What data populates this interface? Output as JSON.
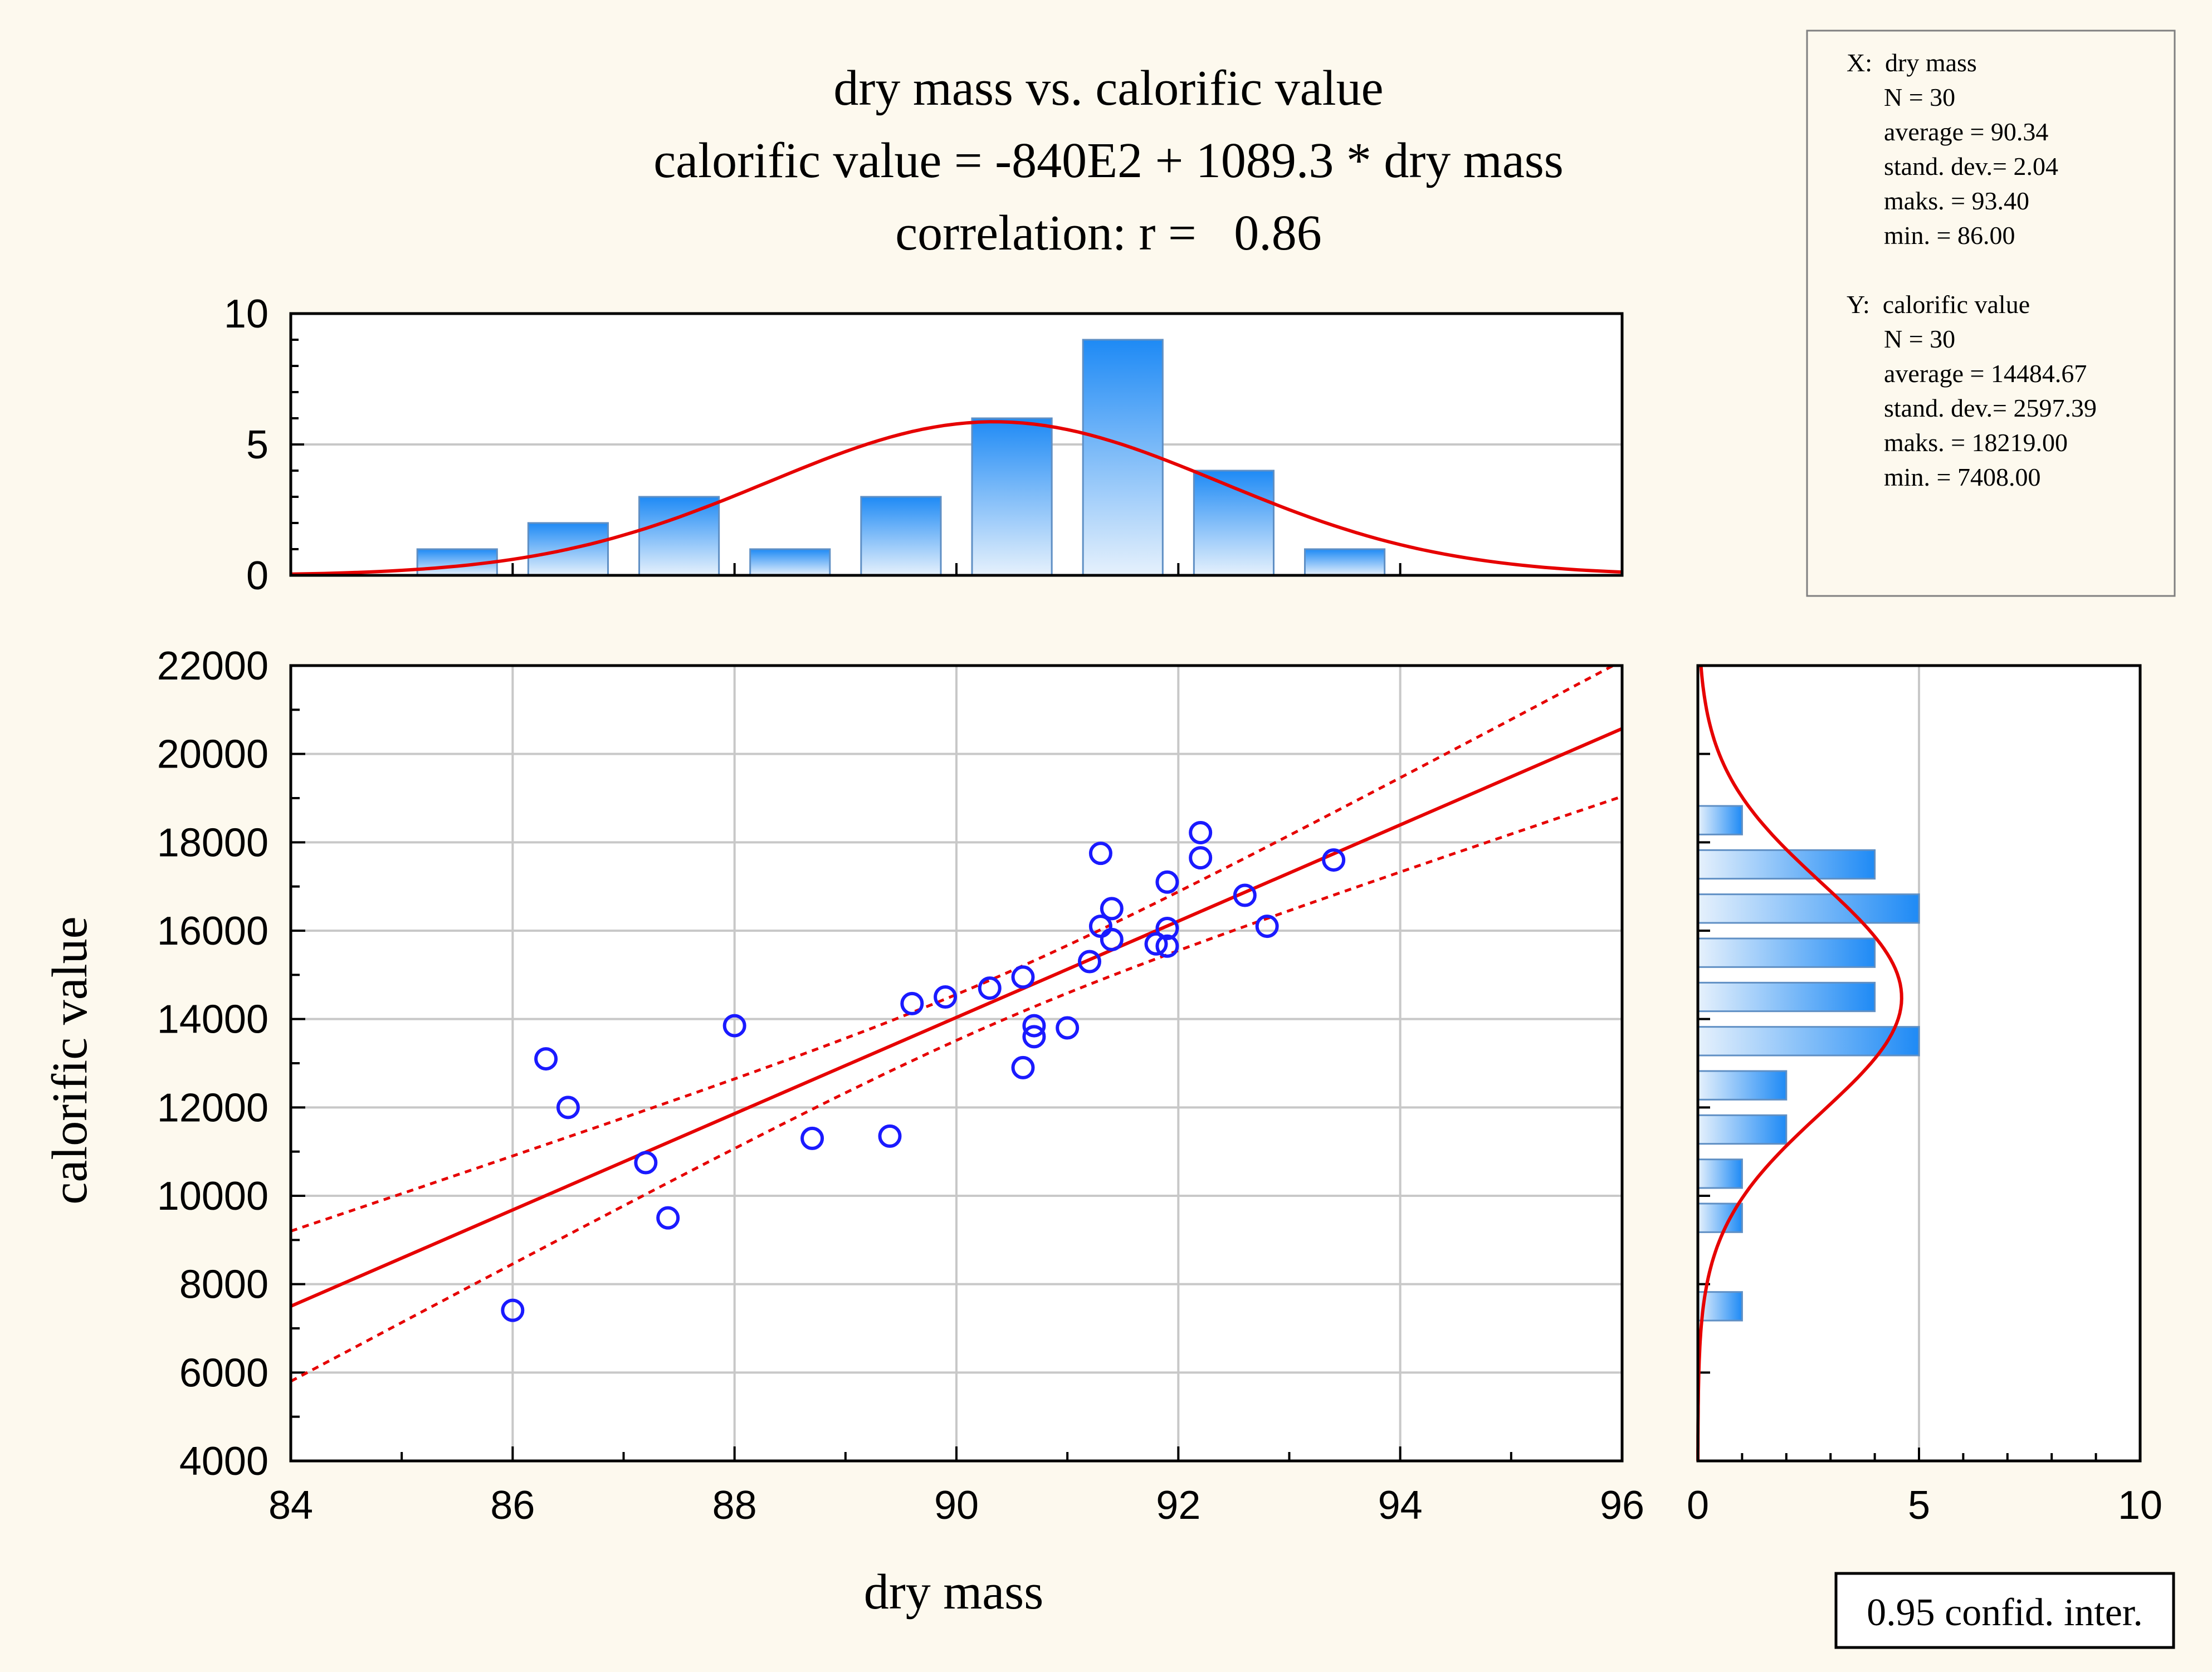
{
  "colors": {
    "background": "#fdf9ee",
    "plot_background": "#ffffff",
    "grid": "#c8c8c8",
    "points": "#1a1aff",
    "fit_line": "#e60000",
    "bar_top": "#1e8af5",
    "bar_bottom": "#e6f1fc",
    "bar_border": "#5f8fc4"
  },
  "title": {
    "line1": "dry mass vs. calorific value",
    "line2": "calorific value = -840E2 + 1089.3 * dry mass",
    "line3": "correlation: r =   0.86"
  },
  "stats_box": {
    "x_header": "X:  dry mass",
    "x_lines": [
      "N = 30",
      "average = 90.34",
      "stand. dev.= 2.04",
      "maks. = 93.40",
      "min. = 86.00"
    ],
    "y_header": "Y:  calorific value",
    "y_lines": [
      "N = 30",
      "average = 14484.67",
      " stand. dev.=  2597.39",
      "maks. = 18219.00",
      "min. = 7408.00"
    ]
  },
  "conf_label": "0.95 confid. inter.",
  "chart_data": [
    {
      "type": "scatter",
      "xlabel": "dry mass",
      "ylabel": "calorific value",
      "xlim": [
        84,
        96
      ],
      "ylim": [
        4000,
        22000
      ],
      "xticks": [
        84,
        86,
        88,
        90,
        92,
        94,
        96
      ],
      "yticks": [
        4000,
        6000,
        8000,
        10000,
        12000,
        14000,
        16000,
        18000,
        20000,
        22000
      ],
      "grid": true,
      "regression": {
        "intercept": -84000,
        "slope": 1089.3,
        "r": 0.86
      },
      "confidence": 0.95,
      "x_mean": 90.34,
      "n": 30,
      "points": [
        [
          86.0,
          7408
        ],
        [
          86.3,
          13100
        ],
        [
          86.5,
          12000
        ],
        [
          87.2,
          10750
        ],
        [
          87.4,
          9500
        ],
        [
          88.0,
          13850
        ],
        [
          88.7,
          11300
        ],
        [
          89.4,
          11350
        ],
        [
          89.6,
          14350
        ],
        [
          89.9,
          14500
        ],
        [
          90.3,
          14700
        ],
        [
          90.6,
          14950
        ],
        [
          90.6,
          12900
        ],
        [
          90.7,
          13850
        ],
        [
          90.7,
          13600
        ],
        [
          91.0,
          13800
        ],
        [
          91.2,
          15300
        ],
        [
          91.3,
          17750
        ],
        [
          91.3,
          16100
        ],
        [
          91.4,
          16500
        ],
        [
          91.4,
          15800
        ],
        [
          91.8,
          15700
        ],
        [
          91.9,
          17100
        ],
        [
          91.9,
          16050
        ],
        [
          91.9,
          15650
        ],
        [
          92.2,
          18219
        ],
        [
          92.2,
          17650
        ],
        [
          92.6,
          16800
        ],
        [
          92.8,
          16100
        ],
        [
          93.4,
          17600
        ]
      ]
    },
    {
      "type": "bar",
      "name": "histogram dry mass",
      "xlim": [
        84,
        96
      ],
      "ylim": [
        0,
        10
      ],
      "yticks": [
        0,
        5,
        10
      ],
      "bin_width": 1,
      "bins": [
        {
          "x0": 85,
          "x1": 86,
          "count": 1
        },
        {
          "x0": 86,
          "x1": 87,
          "count": 2
        },
        {
          "x0": 87,
          "x1": 88,
          "count": 3
        },
        {
          "x0": 88,
          "x1": 89,
          "count": 1
        },
        {
          "x0": 89,
          "x1": 90,
          "count": 3
        },
        {
          "x0": 90,
          "x1": 91,
          "count": 6
        },
        {
          "x0": 91,
          "x1": 92,
          "count": 9
        },
        {
          "x0": 92,
          "x1": 93,
          "count": 4
        },
        {
          "x0": 93,
          "x1": 94,
          "count": 1
        }
      ],
      "normal_curve": {
        "mean": 90.34,
        "sd": 2.04,
        "n": 30
      }
    },
    {
      "type": "bar",
      "name": "histogram calorific value",
      "orientation": "horizontal",
      "xlim": [
        0,
        10
      ],
      "ylim": [
        4000,
        22000
      ],
      "xticks": [
        0,
        5,
        10
      ],
      "bin_width": 1000,
      "bins": [
        {
          "y0": 7000,
          "y1": 8000,
          "count": 1
        },
        {
          "y0": 9000,
          "y1": 10000,
          "count": 1
        },
        {
          "y0": 10000,
          "y1": 11000,
          "count": 1
        },
        {
          "y0": 11000,
          "y1": 12000,
          "count": 2
        },
        {
          "y0": 12000,
          "y1": 13000,
          "count": 2
        },
        {
          "y0": 13000,
          "y1": 14000,
          "count": 5
        },
        {
          "y0": 14000,
          "y1": 15000,
          "count": 4
        },
        {
          "y0": 15000,
          "y1": 16000,
          "count": 4
        },
        {
          "y0": 16000,
          "y1": 17000,
          "count": 5
        },
        {
          "y0": 17000,
          "y1": 18000,
          "count": 4
        },
        {
          "y0": 18000,
          "y1": 19000,
          "count": 1
        }
      ],
      "normal_curve": {
        "mean": 14484.67,
        "sd": 2597.39,
        "n": 30
      }
    }
  ]
}
